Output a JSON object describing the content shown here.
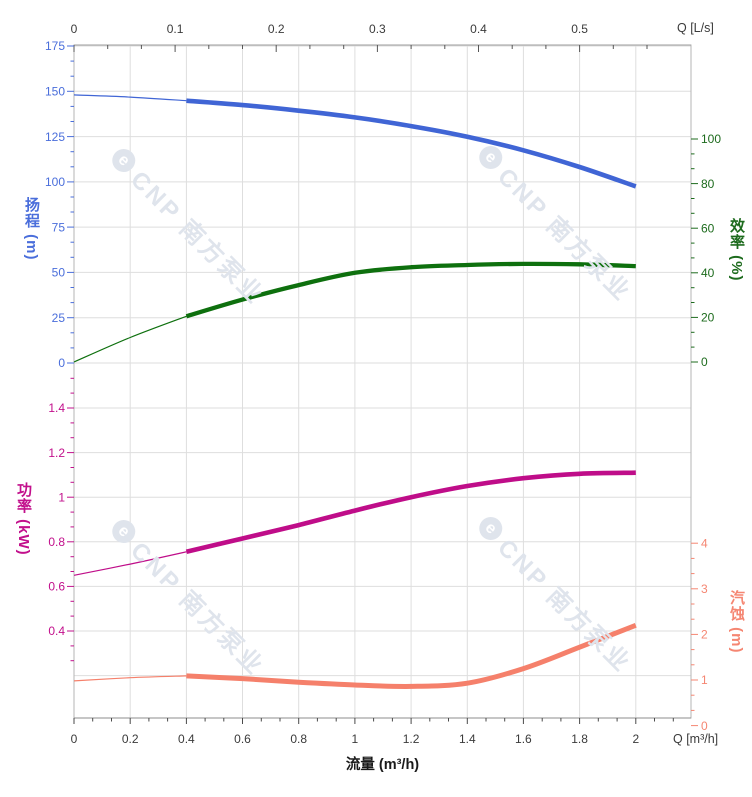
{
  "watermark": {
    "logo_char": "e",
    "text": "CNP 南方泵业",
    "color": "#dfe4ec"
  },
  "axes": {
    "top": {
      "label": "Q [L/s]",
      "ticks": [
        "0",
        "0.1",
        "0.2",
        "0.3",
        "0.4",
        "0.5"
      ],
      "max": 0.607
    },
    "bottom": {
      "label": "Q [m³/h]",
      "axis_title": "流量 (m³/h)",
      "ticks": [
        "0",
        "0.2",
        "0.4",
        "0.6",
        "0.8",
        "1",
        "1.2",
        "1.4",
        "1.6",
        "1.8",
        "2"
      ],
      "max": 2.196
    },
    "head": {
      "title_full": "扬程 (m)",
      "ticks": [
        "175",
        "150",
        "125",
        "100",
        "75",
        "50",
        "25",
        "0"
      ],
      "color": "#4a6edb",
      "curve_color": "#4065d5"
    },
    "eff": {
      "title_full": "效率 (%)",
      "ticks": [
        "100",
        "80",
        "60",
        "40",
        "20",
        "0"
      ],
      "color": "#1d6b1d",
      "curve_color": "#0e700e"
    },
    "power": {
      "title_full": "功率 (kW)",
      "ticks": [
        "1.4",
        "1.2",
        "1",
        "0.8",
        "0.6",
        "0.4"
      ],
      "color": "#c2108c",
      "curve_color": "#bf0d89"
    },
    "npsh": {
      "title_full": "汽蚀 (m)",
      "ticks": [
        "4",
        "3",
        "2",
        "1",
        "0"
      ],
      "color": "#f58672",
      "curve_color": "#f5806b"
    }
  },
  "chart_data": {
    "type": "line",
    "title": "",
    "x_title": "流量 (m³/h)",
    "x_label_top": "Q [L/s]",
    "x_label_bottom": "Q [m³/h]",
    "x": [
      0,
      0.2,
      0.4,
      0.6,
      0.8,
      1,
      1.2,
      1.4,
      1.6,
      1.8,
      2
    ],
    "x_range_m3h": [
      0,
      2.196
    ],
    "x_range_Ls": [
      0,
      0.607
    ],
    "series": [
      {
        "name": "扬程",
        "unit": "m",
        "axis": "head",
        "axis_range": [
          0,
          175
        ],
        "values": [
          148,
          146.8,
          144.8,
          142.4,
          139.3,
          135.6,
          130.8,
          124.9,
          117.4,
          108.2,
          97.5
        ]
      },
      {
        "name": "效率",
        "unit": "%",
        "axis": "eff",
        "axis_range": [
          0,
          100
        ],
        "values": [
          0,
          11,
          20.5,
          28,
          34.5,
          40,
          42.5,
          43.5,
          44,
          43.8,
          43
        ]
      },
      {
        "name": "功率",
        "unit": "kW",
        "axis": "power",
        "axis_range": [
          0.4,
          1.4
        ],
        "values": [
          0.65,
          0.7,
          0.755,
          0.815,
          0.875,
          0.94,
          1,
          1.05,
          1.085,
          1.105,
          1.11
        ]
      },
      {
        "name": "汽蚀",
        "unit": "m",
        "axis": "npsh",
        "axis_range": [
          0,
          4
        ],
        "values": [
          0.98,
          1.05,
          1.09,
          1.03,
          0.95,
          0.89,
          0.86,
          0.93,
          1.25,
          1.72,
          2.2
        ]
      }
    ],
    "thick_from_x": 0.4,
    "grid": true,
    "legend": "none",
    "notes": "thin curve segment 0-0.4 m3/h, thick recommended-duty segment 0.4-2 m3/h"
  }
}
